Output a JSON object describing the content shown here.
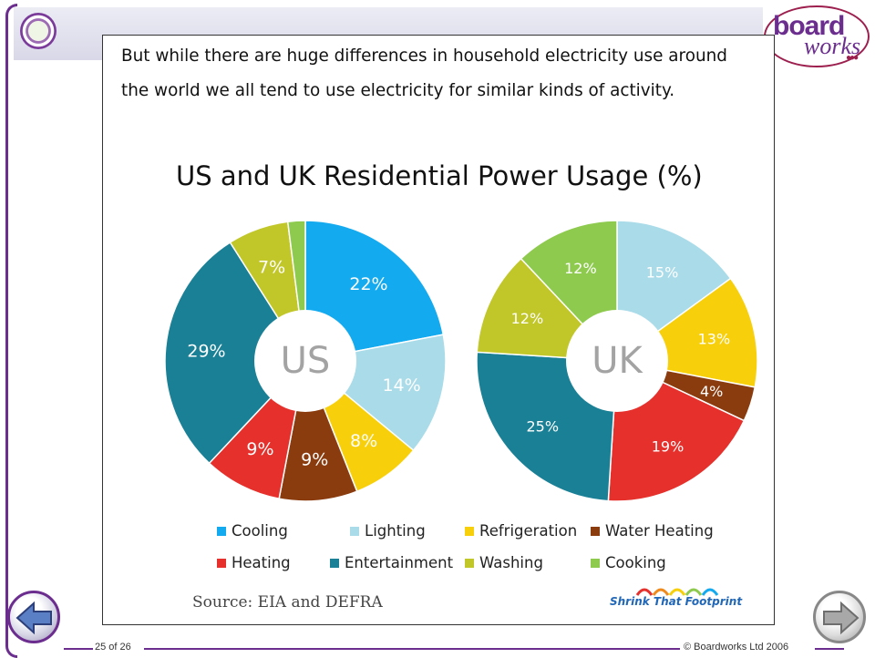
{
  "intro_text": "But while there are huge differences in household electricity use around the world we all tend to use electricity for similar kinds of activity.",
  "source_text": "Source:  EIA and DEFRA",
  "source_logo_text": "Shrink That Footprint",
  "brand": {
    "word1": "board",
    "word2": "works",
    "dots": "●●●"
  },
  "footer": {
    "page": "25 of 26",
    "copyright": "© Boardworks Ltd 2006"
  },
  "icons": {
    "crest": "school-crest-icon",
    "prev": "back-arrow-icon",
    "next": "forward-arrow-icon"
  },
  "colors": {
    "Cooling": "#13aaef",
    "Lighting": "#a9dbe9",
    "Refrigeration": "#f7cf0b",
    "Water Heating": "#8a3c0f",
    "Heating": "#e5302c",
    "Entertainment": "#1a8096",
    "Washing": "#c1c728",
    "Cooking": "#8dca4e",
    "theme": "#6b2d8e"
  },
  "chart_data": {
    "type": "pie",
    "title": "US and UK Residential Power Usage (%)",
    "legend_position": "bottom",
    "legend": [
      "Cooling",
      "Lighting",
      "Refrigeration",
      "Water Heating",
      "Heating",
      "Entertainment",
      "Washing",
      "Cooking"
    ],
    "charts": [
      {
        "name": "US",
        "slices": [
          {
            "label": "Cooling",
            "value": 22,
            "text": "22%"
          },
          {
            "label": "Lighting",
            "value": 14,
            "text": "14%"
          },
          {
            "label": "Refrigeration",
            "value": 8,
            "text": "8%"
          },
          {
            "label": "Water Heating",
            "value": 9,
            "text": "9%"
          },
          {
            "label": "Heating",
            "value": 9,
            "text": "9%"
          },
          {
            "label": "Entertainment",
            "value": 29,
            "text": "29%"
          },
          {
            "label": "Washing",
            "value": 7,
            "text": "7%"
          },
          {
            "label": "Cooking",
            "value": 2,
            "text": ""
          }
        ]
      },
      {
        "name": "UK",
        "slices": [
          {
            "label": "Lighting",
            "value": 15,
            "text": "15%"
          },
          {
            "label": "Refrigeration",
            "value": 13,
            "text": "13%"
          },
          {
            "label": "Water Heating",
            "value": 4,
            "text": "4%"
          },
          {
            "label": "Heating",
            "value": 19,
            "text": "19%"
          },
          {
            "label": "Entertainment",
            "value": 25,
            "text": "25%"
          },
          {
            "label": "Washing",
            "value": 12,
            "text": "12%"
          },
          {
            "label": "Cooking",
            "value": 12,
            "text": "12%"
          }
        ]
      }
    ]
  }
}
